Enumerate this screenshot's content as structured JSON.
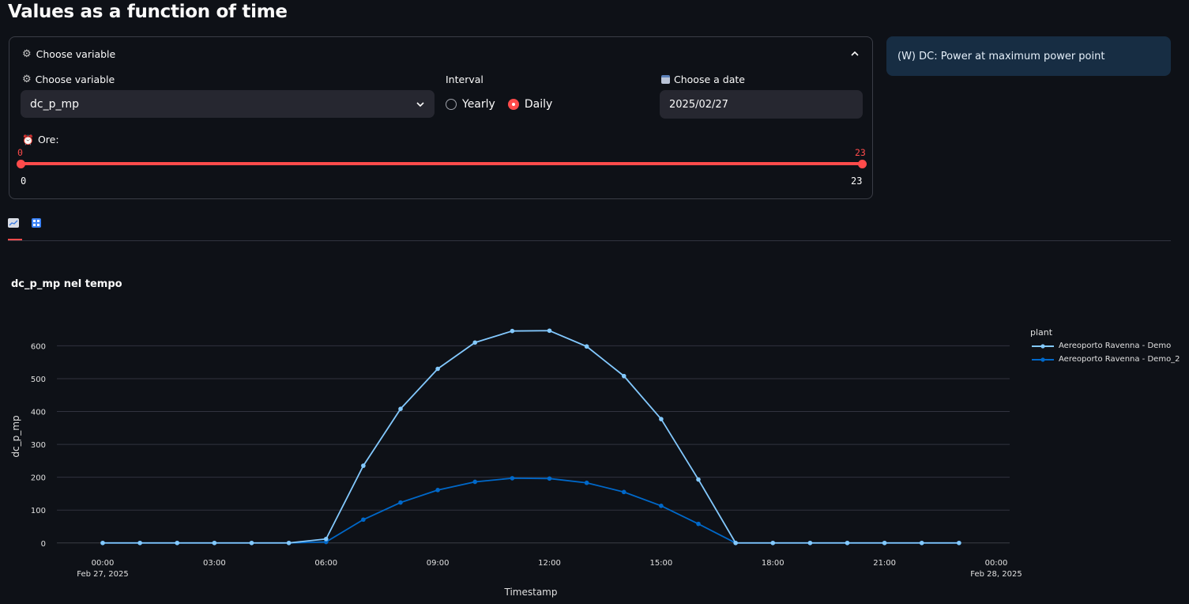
{
  "page_title": "Values as a function of time",
  "expander": {
    "header": "Choose variable",
    "variable_label": "Choose variable",
    "variable_value": "dc_p_mp",
    "interval_label": "Interval",
    "interval_options": [
      "Yearly",
      "Daily"
    ],
    "interval_selected": "Daily",
    "date_label": "Choose a date",
    "date_value": "2025/02/27",
    "hours_label": "Ore:",
    "slider_low": "0",
    "slider_high": "23",
    "slider_min": "0",
    "slider_max": "23"
  },
  "info_box": "(W) DC: Power at maximum power point",
  "tabs": [
    "chart-icon",
    "numbers-icon"
  ],
  "chart_title": "dc_p_mp nel tempo",
  "chart_data": {
    "type": "line",
    "title": "dc_p_mp nel tempo",
    "xlabel": "Timestamp",
    "ylabel": "dc_p_mp",
    "ylim": [
      -15,
      690
    ],
    "xlim": [
      0,
      24
    ],
    "yticks": [
      0,
      100,
      200,
      300,
      400,
      500,
      600
    ],
    "xticks": [
      {
        "h": 0,
        "label": "00:00",
        "sub": "Feb 27, 2025"
      },
      {
        "h": 3,
        "label": "03:00",
        "sub": ""
      },
      {
        "h": 6,
        "label": "06:00",
        "sub": ""
      },
      {
        "h": 9,
        "label": "09:00",
        "sub": ""
      },
      {
        "h": 12,
        "label": "12:00",
        "sub": ""
      },
      {
        "h": 15,
        "label": "15:00",
        "sub": ""
      },
      {
        "h": 18,
        "label": "18:00",
        "sub": ""
      },
      {
        "h": 21,
        "label": "21:00",
        "sub": ""
      },
      {
        "h": 24,
        "label": "00:00",
        "sub": "Feb 28, 2025"
      }
    ],
    "legend_title": "plant",
    "x": [
      0,
      1,
      2,
      3,
      4,
      5,
      6,
      7,
      8,
      9,
      10,
      11,
      12,
      13,
      14,
      15,
      16,
      17,
      18,
      19,
      20,
      21,
      22,
      23
    ],
    "series": [
      {
        "name": "Aereoporto Ravenna - Demo",
        "color": "#83c9ff",
        "values": [
          0,
          0,
          0,
          0,
          0,
          0,
          12,
          235,
          408,
          530,
          610,
          645,
          646,
          598,
          508,
          377,
          193,
          0,
          0,
          0,
          0,
          0,
          0,
          0
        ]
      },
      {
        "name": "Aereoporto Ravenna - Demo_2",
        "color": "#0068c9",
        "values": [
          0,
          0,
          0,
          0,
          0,
          0,
          3,
          71,
          123,
          161,
          186,
          197,
          196,
          183,
          155,
          113,
          58,
          0,
          0,
          0,
          0,
          0,
          0,
          0
        ]
      }
    ]
  },
  "colors": {
    "background": "#0e1117",
    "accent": "#ff4b4b",
    "info_bg": "#172d43",
    "input_bg": "#262730"
  }
}
